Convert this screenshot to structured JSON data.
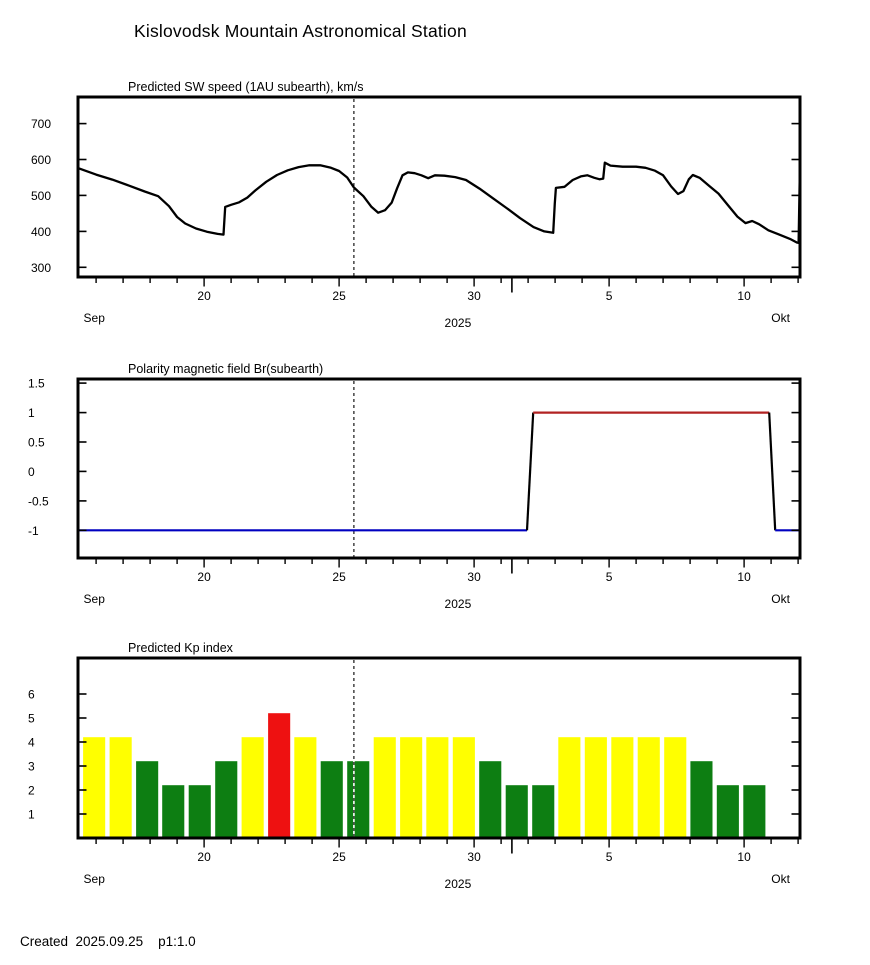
{
  "page_title": "Kislovodsk Mountain Astronomical Station",
  "footer": {
    "created": "Created  2025.09.25    p1:1.0"
  },
  "colors": {
    "series_black": "#000000",
    "polarity_negative_blue": "#0000c0",
    "polarity_positive_red": "#b22222",
    "kp_active_yellow": "#ffff00",
    "kp_quiet_green": "#0d7e12",
    "kp_storm_red": "#ee1111",
    "now_line": "#000000"
  },
  "chart_data": [
    {
      "type": "line",
      "title": "Predicted SW speed (1AU subearth), km/s",
      "x_domain_days": [
        15.33,
        42.07
      ],
      "ylim": [
        273,
        774
      ],
      "yticks": [
        300,
        400,
        500,
        600,
        700
      ],
      "ytick_labels": [
        "300",
        "400",
        "500",
        "600",
        "700"
      ],
      "xticks": [
        {
          "day": 20,
          "label": "20"
        },
        {
          "day": 25,
          "label": "25"
        },
        {
          "day": 30,
          "label": "30"
        },
        {
          "day": 35,
          "label": "5"
        },
        {
          "day": 40,
          "label": "10"
        }
      ],
      "month_tick_day": 31.4,
      "month_labels": [
        {
          "day": 15.93,
          "label": "Sep"
        },
        {
          "day": 41.35,
          "label": "Okt"
        }
      ],
      "year_label": {
        "day": 29.4,
        "label": "2025"
      },
      "now_line_day": 25.55,
      "grid": false,
      "series": [
        {
          "name": "predicted-sw-speed",
          "color_key": "series_black",
          "points": [
            [
              15.33,
              576
            ],
            [
              16.0,
              558
            ],
            [
              16.6,
              544
            ],
            [
              17.2,
              528
            ],
            [
              17.8,
              511
            ],
            [
              18.3,
              498
            ],
            [
              18.7,
              470
            ],
            [
              19.0,
              440
            ],
            [
              19.3,
              422
            ],
            [
              19.7,
              408
            ],
            [
              20.1,
              399
            ],
            [
              20.5,
              393
            ],
            [
              20.72,
              391
            ],
            [
              20.78,
              468
            ],
            [
              21.0,
              474
            ],
            [
              21.3,
              481
            ],
            [
              21.6,
              494
            ],
            [
              21.9,
              514
            ],
            [
              22.3,
              538
            ],
            [
              22.7,
              557
            ],
            [
              23.1,
              570
            ],
            [
              23.5,
              579
            ],
            [
              23.9,
              584
            ],
            [
              24.3,
              584
            ],
            [
              24.7,
              577
            ],
            [
              25.0,
              568
            ],
            [
              25.3,
              550
            ],
            [
              25.55,
              522
            ],
            [
              25.9,
              498
            ],
            [
              26.2,
              468
            ],
            [
              26.45,
              452
            ],
            [
              26.7,
              459
            ],
            [
              26.95,
              480
            ],
            [
              27.15,
              520
            ],
            [
              27.35,
              556
            ],
            [
              27.55,
              564
            ],
            [
              27.8,
              562
            ],
            [
              28.05,
              556
            ],
            [
              28.3,
              548
            ],
            [
              28.55,
              556
            ],
            [
              28.9,
              555
            ],
            [
              29.3,
              551
            ],
            [
              29.7,
              543
            ],
            [
              30.2,
              519
            ],
            [
              30.7,
              492
            ],
            [
              31.2,
              465
            ],
            [
              31.7,
              437
            ],
            [
              32.2,
              412
            ],
            [
              32.6,
              400
            ],
            [
              32.93,
              396
            ],
            [
              32.99,
              478
            ],
            [
              33.03,
              521
            ],
            [
              33.35,
              524
            ],
            [
              33.65,
              543
            ],
            [
              33.95,
              553
            ],
            [
              34.2,
              556
            ],
            [
              34.45,
              549
            ],
            [
              34.65,
              545
            ],
            [
              34.78,
              547
            ],
            [
              34.84,
              591
            ],
            [
              35.05,
              583
            ],
            [
              35.5,
              580
            ],
            [
              36.0,
              580
            ],
            [
              36.35,
              577
            ],
            [
              36.7,
              569
            ],
            [
              37.0,
              556
            ],
            [
              37.3,
              525
            ],
            [
              37.55,
              504
            ],
            [
              37.75,
              512
            ],
            [
              37.95,
              545
            ],
            [
              38.1,
              557
            ],
            [
              38.35,
              549
            ],
            [
              38.7,
              527
            ],
            [
              39.05,
              505
            ],
            [
              39.4,
              473
            ],
            [
              39.75,
              441
            ],
            [
              40.05,
              423
            ],
            [
              40.3,
              429
            ],
            [
              40.55,
              420
            ],
            [
              40.9,
              403
            ],
            [
              41.3,
              391
            ],
            [
              41.7,
              379
            ],
            [
              41.95,
              369
            ],
            [
              42.02,
              368
            ],
            [
              42.07,
              593
            ]
          ]
        }
      ]
    },
    {
      "type": "line",
      "title": "Polarity magnetic field  Br(subearth)",
      "x_domain_days": [
        15.33,
        42.07
      ],
      "ylim": [
        -1.47,
        1.57
      ],
      "yticks": [
        -1,
        -0.5,
        0,
        0.5,
        1,
        1.5
      ],
      "ytick_labels": [
        "-1",
        "-0.5",
        "0",
        "0.5",
        "1",
        "1.5"
      ],
      "xticks": [
        {
          "day": 20,
          "label": "20"
        },
        {
          "day": 25,
          "label": "25"
        },
        {
          "day": 30,
          "label": "30"
        },
        {
          "day": 35,
          "label": "5"
        },
        {
          "day": 40,
          "label": "10"
        }
      ],
      "month_tick_day": 31.4,
      "month_labels": [
        {
          "day": 15.93,
          "label": "Sep"
        },
        {
          "day": 41.35,
          "label": "Okt"
        }
      ],
      "year_label": {
        "day": 29.4,
        "label": "2025"
      },
      "now_line_day": 25.55,
      "grid": false,
      "segments": [
        {
          "name": "polarity-negative",
          "color_key": "polarity_negative_blue",
          "points": [
            [
              15.33,
              -1
            ],
            [
              31.96,
              -1
            ]
          ]
        },
        {
          "name": "polarity-transition-up",
          "color_key": "series_black",
          "points": [
            [
              31.96,
              -1
            ],
            [
              32.19,
              1
            ]
          ]
        },
        {
          "name": "polarity-positive",
          "color_key": "polarity_positive_red",
          "points": [
            [
              32.19,
              1
            ],
            [
              40.93,
              1
            ]
          ]
        },
        {
          "name": "polarity-transition-down",
          "color_key": "series_black",
          "points": [
            [
              40.93,
              1
            ],
            [
              41.15,
              -1
            ]
          ]
        },
        {
          "name": "polarity-negative-end",
          "color_key": "polarity_negative_blue",
          "points": [
            [
              41.15,
              -1
            ],
            [
              42.07,
              -1
            ]
          ]
        }
      ]
    },
    {
      "type": "bar",
      "title": "Predicted Kp index",
      "x_domain_days": [
        15.33,
        42.07
      ],
      "ylim": [
        0,
        7.5
      ],
      "yticks": [
        1,
        2,
        3,
        4,
        5,
        6
      ],
      "ytick_labels": [
        "1",
        "2",
        "3",
        "4",
        "5",
        "6"
      ],
      "xticks": [
        {
          "day": 20,
          "label": "20"
        },
        {
          "day": 25,
          "label": "25"
        },
        {
          "day": 30,
          "label": "30"
        },
        {
          "day": 35,
          "label": "5"
        },
        {
          "day": 40,
          "label": "10"
        }
      ],
      "month_tick_day": 31.4,
      "month_labels": [
        {
          "day": 15.93,
          "label": "Sep"
        },
        {
          "day": 41.35,
          "label": "Okt"
        }
      ],
      "year_label": {
        "day": 29.4,
        "label": "2025"
      },
      "now_line_day": 25.55,
      "grid": false,
      "bar_width_days": 0.82,
      "bars": [
        {
          "day": 15.93,
          "value": 4.2,
          "color_key": "kp_active_yellow"
        },
        {
          "day": 16.91,
          "value": 4.2,
          "color_key": "kp_active_yellow"
        },
        {
          "day": 17.89,
          "value": 3.2,
          "color_key": "kp_quiet_green"
        },
        {
          "day": 18.86,
          "value": 2.2,
          "color_key": "kp_quiet_green"
        },
        {
          "day": 19.84,
          "value": 2.2,
          "color_key": "kp_quiet_green"
        },
        {
          "day": 20.82,
          "value": 3.2,
          "color_key": "kp_quiet_green"
        },
        {
          "day": 21.8,
          "value": 4.2,
          "color_key": "kp_active_yellow"
        },
        {
          "day": 22.78,
          "value": 5.2,
          "color_key": "kp_storm_red"
        },
        {
          "day": 23.75,
          "value": 4.2,
          "color_key": "kp_active_yellow"
        },
        {
          "day": 24.73,
          "value": 3.2,
          "color_key": "kp_quiet_green"
        },
        {
          "day": 25.71,
          "value": 3.2,
          "color_key": "kp_quiet_green"
        },
        {
          "day": 26.69,
          "value": 4.2,
          "color_key": "kp_active_yellow"
        },
        {
          "day": 27.67,
          "value": 4.2,
          "color_key": "kp_active_yellow"
        },
        {
          "day": 28.64,
          "value": 4.2,
          "color_key": "kp_active_yellow"
        },
        {
          "day": 29.62,
          "value": 4.2,
          "color_key": "kp_active_yellow"
        },
        {
          "day": 30.6,
          "value": 3.2,
          "color_key": "kp_quiet_green"
        },
        {
          "day": 31.58,
          "value": 2.2,
          "color_key": "kp_quiet_green"
        },
        {
          "day": 32.56,
          "value": 2.2,
          "color_key": "kp_quiet_green"
        },
        {
          "day": 33.53,
          "value": 4.2,
          "color_key": "kp_active_yellow"
        },
        {
          "day": 34.51,
          "value": 4.2,
          "color_key": "kp_active_yellow"
        },
        {
          "day": 35.49,
          "value": 4.2,
          "color_key": "kp_active_yellow"
        },
        {
          "day": 36.47,
          "value": 4.2,
          "color_key": "kp_active_yellow"
        },
        {
          "day": 37.45,
          "value": 4.2,
          "color_key": "kp_active_yellow"
        },
        {
          "day": 38.42,
          "value": 3.2,
          "color_key": "kp_quiet_green"
        },
        {
          "day": 39.4,
          "value": 2.2,
          "color_key": "kp_quiet_green"
        },
        {
          "day": 40.38,
          "value": 2.2,
          "color_key": "kp_quiet_green"
        }
      ]
    }
  ]
}
